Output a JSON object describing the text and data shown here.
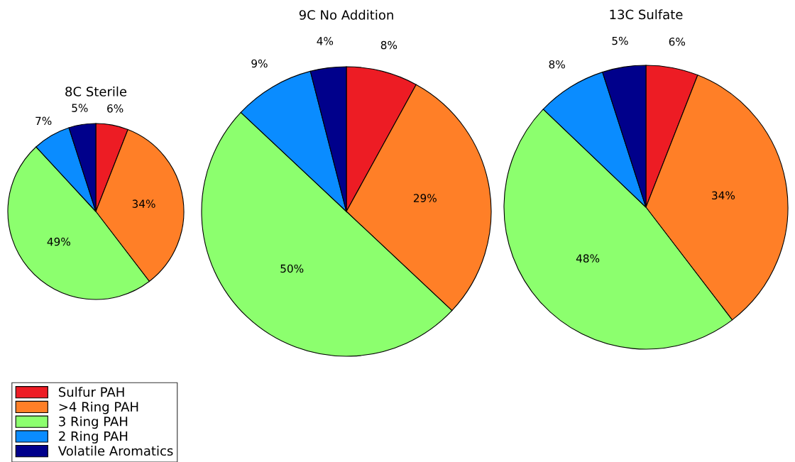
{
  "chart_data": [
    {
      "type": "pie",
      "title": "8C Sterile",
      "categories": [
        "Sulfur PAH",
        ">4 Ring PAH",
        "3 Ring PAH",
        "2 Ring PAH",
        "Volatile Aromatics"
      ],
      "values": [
        6,
        34,
        49,
        7,
        5
      ],
      "value_labels": [
        "6%",
        "34%",
        "49%",
        "7%",
        "5%"
      ],
      "colors": [
        "#ed1c24",
        "#ff7f27",
        "#8cff6e",
        "#0a8cff",
        "#00008b"
      ],
      "legend": "bottom left"
    },
    {
      "type": "pie",
      "title": "9C No Addition",
      "categories": [
        null,
        null,
        null,
        null,
        null
      ],
      "values": [
        8,
        29,
        50,
        9,
        4
      ],
      "value_labels": [
        "8%",
        "29%",
        "50%",
        "9%",
        "4%"
      ],
      "colors": [
        "#ed1c24",
        "#ff7f27",
        "#8cff6e",
        "#0a8cff",
        "#00008b"
      ]
    },
    {
      "type": "pie",
      "title": "13C Sulfate",
      "categories": [
        null,
        null,
        null,
        null,
        null
      ],
      "values": [
        6,
        34,
        48,
        8,
        5
      ],
      "value_labels": [
        "6%",
        "34%",
        "48%",
        "8%",
        "5%"
      ],
      "colors": [
        "#ed1c24",
        "#ff7f27",
        "#8cff6e",
        "#0a8cff",
        "#00008b"
      ]
    }
  ]
}
